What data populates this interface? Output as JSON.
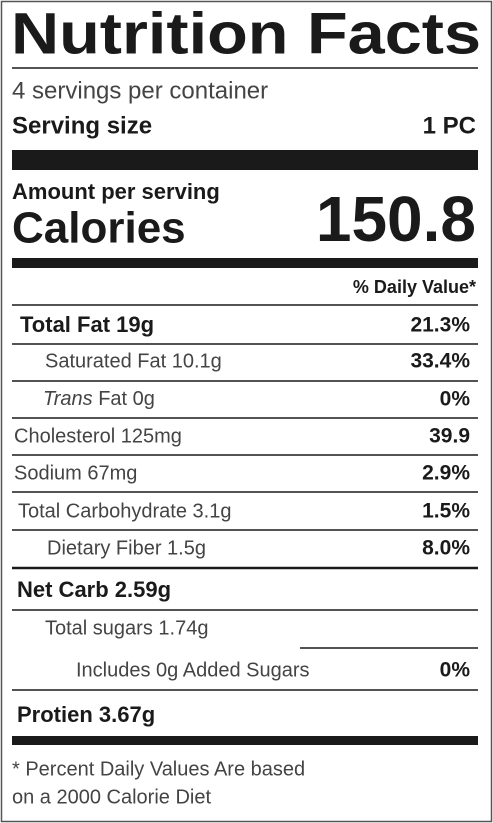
{
  "header": {
    "title": "Nutrition Facts",
    "servings": "4 servings per container",
    "serving_size_label": "Serving size",
    "serving_size": "1 PC"
  },
  "calories": {
    "amount_label": "Amount per serving",
    "label": "Calories",
    "value": "150.8"
  },
  "daily_value_header": "% Daily Value*",
  "rows": [
    {
      "label": "Total Fat 19g",
      "dv": "21.3%"
    },
    {
      "label": "Saturated Fat 10.1g",
      "dv": "33.4%"
    },
    {
      "label_italic": "Trans",
      "label": "Fat 0g",
      "dv": "0%"
    },
    {
      "label": "Cholesterol 125mg",
      "dv": "39.9"
    },
    {
      "label": "Sodium 67mg",
      "dv": "2.9%"
    },
    {
      "label": "Total Carbohydrate 3.1g",
      "dv": "1.5%"
    },
    {
      "label": "Dietary Fiber 1.5g",
      "dv": "8.0%"
    },
    {
      "label": "Net Carb 2.59g"
    },
    {
      "label": "Total sugars 1.74g"
    },
    {
      "label": "Includes 0g Added Sugars",
      "dv": "0%"
    },
    {
      "label": "Protien 3.67g"
    }
  ],
  "footnote": [
    "* Percent Daily Values Are based",
    "on a 2000 Calorie Diet"
  ]
}
